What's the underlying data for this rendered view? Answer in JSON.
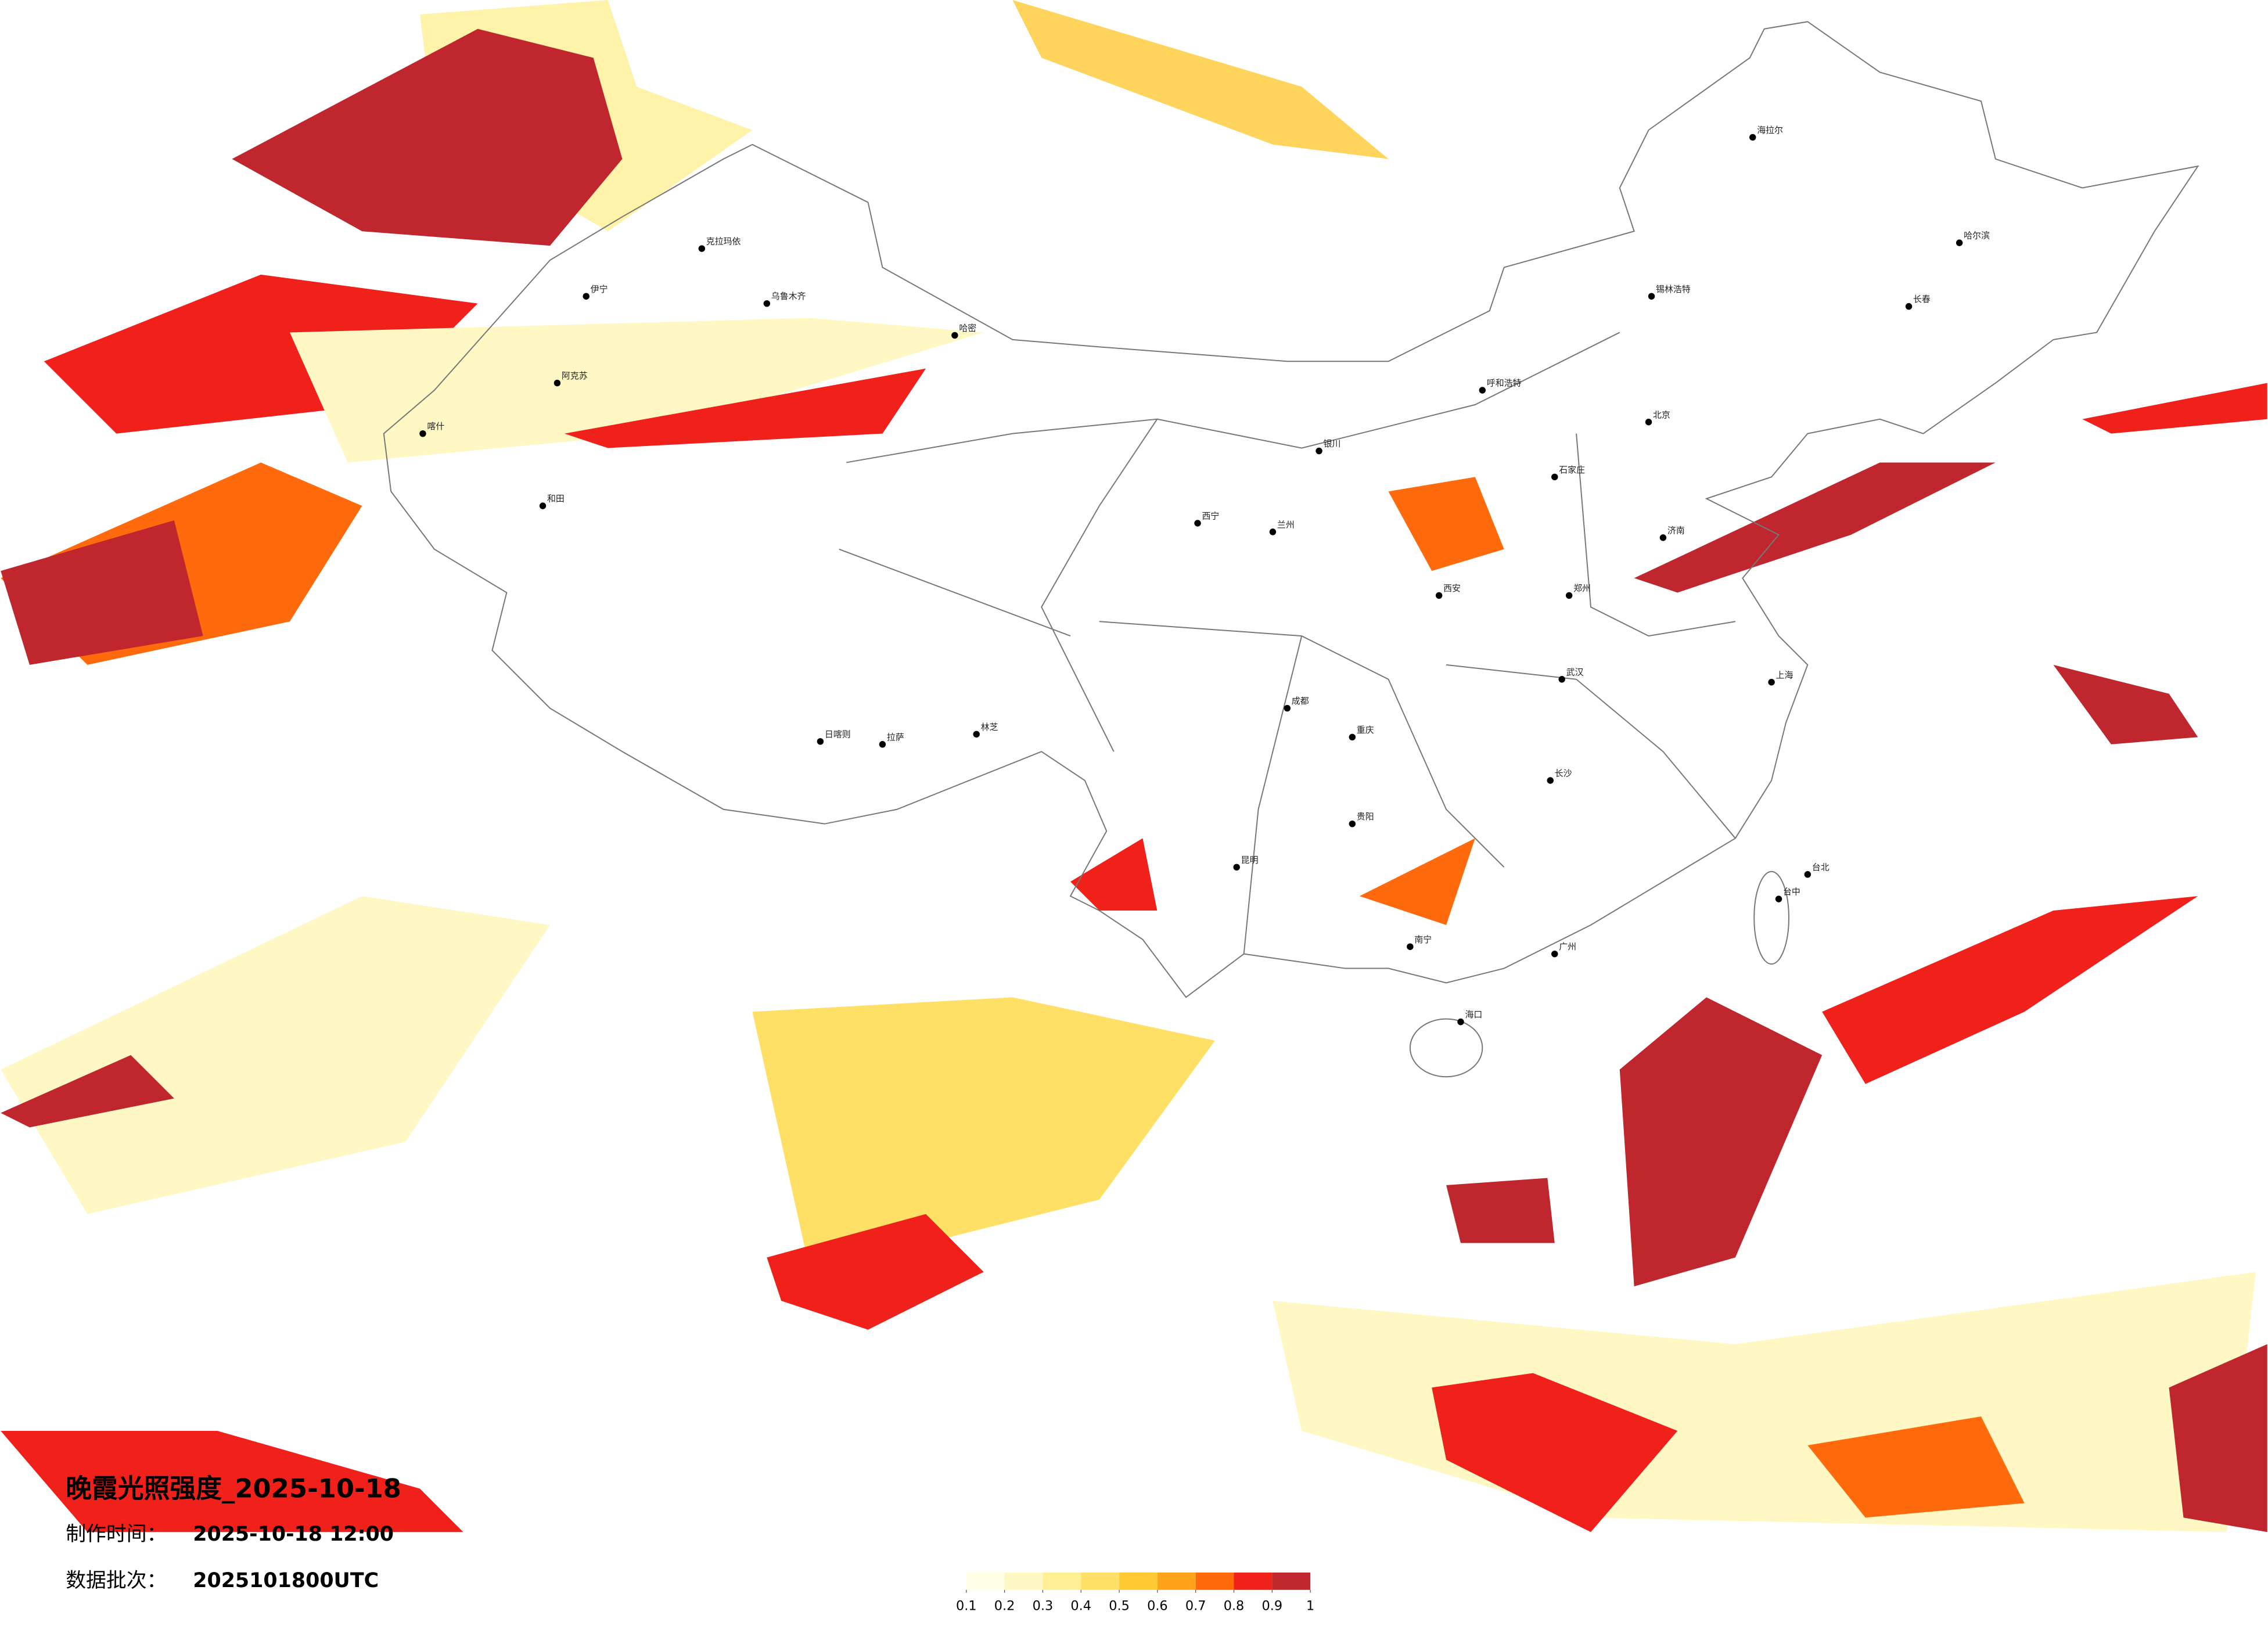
{
  "title": "晚霞光照强度_2025-10-18",
  "info": [
    {
      "label": "制作时间：",
      "value": "2025-10-18 12:00"
    },
    {
      "label": "数据批次：",
      "value": "2025101800UTC"
    }
  ],
  "legend": {
    "ticks": [
      0.1,
      0.2,
      0.3,
      0.4,
      0.5,
      0.6,
      0.7,
      0.8,
      0.9,
      1
    ],
    "colors": [
      "#ffffe6",
      "#fff8c4",
      "#ffef94",
      "#ffe066",
      "#ffc933",
      "#ffa31a",
      "#ff6a0d",
      "#f0201a",
      "#c0262e"
    ]
  },
  "cities": [
    "乌鲁木齐",
    "哈密",
    "克拉玛依",
    "伊宁",
    "阿克苏",
    "喀什",
    "和田",
    "拉萨",
    "日喀则",
    "林芝",
    "西宁",
    "兰州",
    "银川",
    "呼和浩特",
    "北京",
    "石家庄",
    "济南",
    "郑州",
    "西安",
    "成都",
    "重庆",
    "昆明",
    "南宁",
    "广州",
    "海口",
    "台北",
    "台中",
    "哈尔滨",
    "长春",
    "海拉尔",
    "锡林浩特",
    "上海",
    "武汉",
    "长沙",
    "贵阳"
  ]
}
